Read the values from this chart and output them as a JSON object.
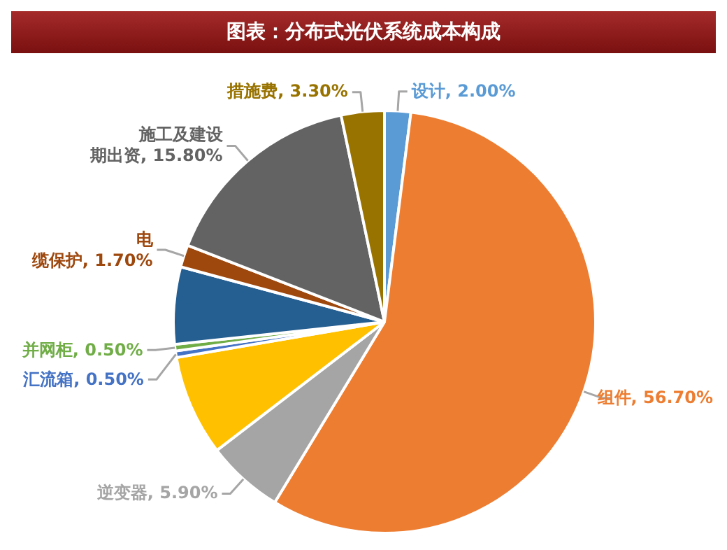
{
  "chart_data": {
    "type": "pie",
    "title": "图表：分布式光伏系统成本构成",
    "categories": [
      "设计",
      "组件",
      "逆变器",
      null,
      "汇流箱",
      "并网柜",
      null,
      "电缆保护",
      "施工及建设期出资",
      "措施费"
    ],
    "values": [
      2.0,
      56.7,
      5.9,
      7.7,
      0.5,
      0.5,
      5.9,
      1.7,
      15.8,
      3.3
    ],
    "value_labels": [
      "2.00%",
      "56.70%",
      "5.90%",
      null,
      "0.50%",
      "0.50%",
      null,
      "1.70%",
      "15.80%",
      "3.30%"
    ],
    "colors": [
      "#5b9bd5",
      "#ed7d31",
      "#a5a5a5",
      "#ffc000",
      "#4472c4",
      "#70ad47",
      "#255e91",
      "#9e480e",
      "#636363",
      "#997300"
    ],
    "legend": false
  }
}
